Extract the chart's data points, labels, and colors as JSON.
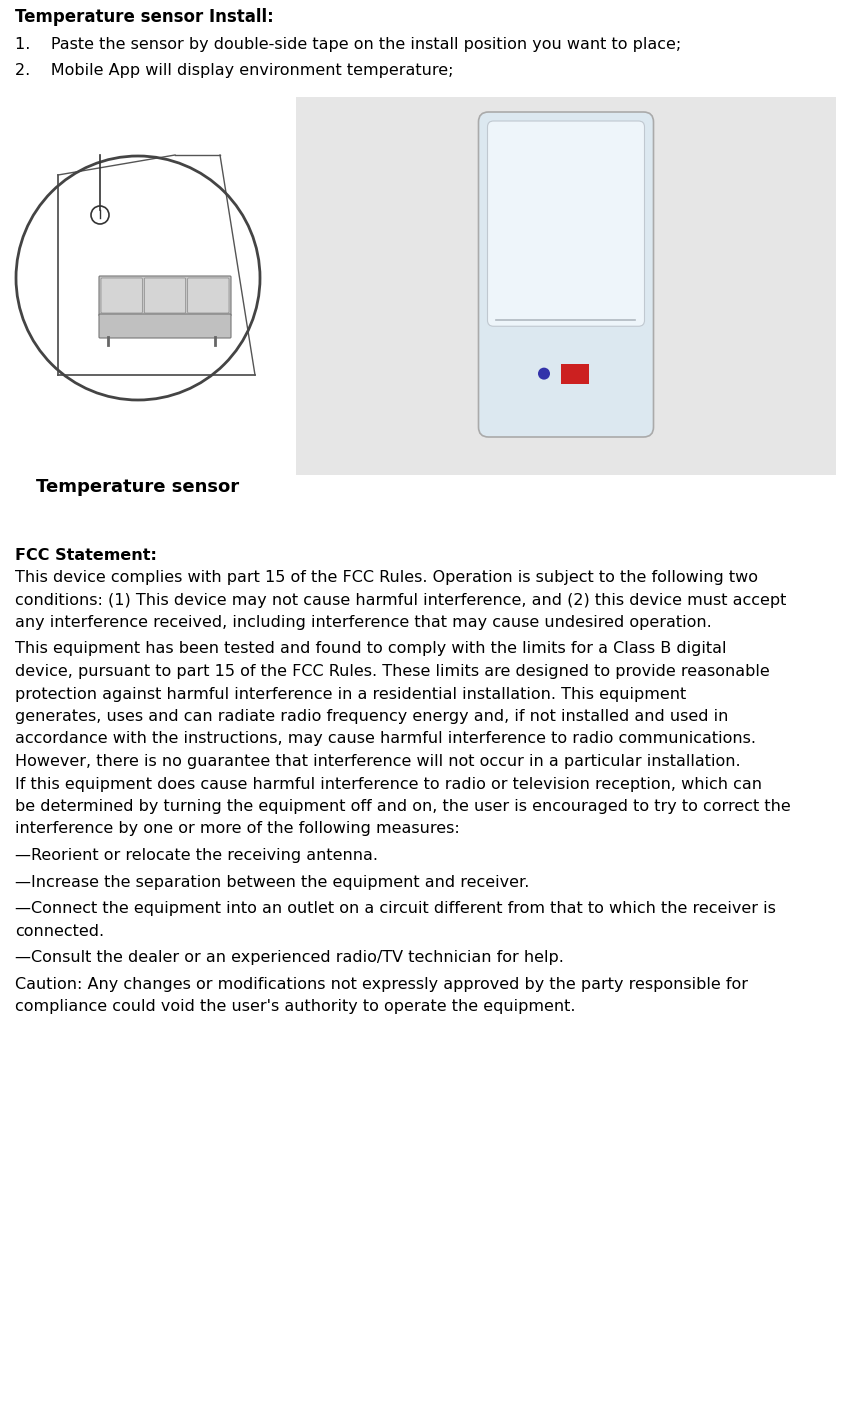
{
  "title": "Temperature sensor Install:",
  "install_steps": [
    "1.    Paste the sensor by double-side tape on the install position you want to place;",
    "2.    Mobile App will display environment temperature;"
  ],
  "image_label": "Temperature sensor",
  "fcc_title": "FCC Statement:",
  "fcc_paragraphs": [
    "This device complies with part 15 of the FCC Rules. Operation is subject to the following two conditions: (1) This device may not cause harmful interference, and (2) this device must accept any interference received, including interference that may cause undesired operation.",
    "This equipment has been tested and found to comply with the limits for a Class B digital device, pursuant to part 15 of the FCC Rules. These limits are designed to provide reasonable protection against harmful interference in a residential installation. This equipment generates, uses and can radiate radio frequency energy and, if not installed and used in accordance with the instructions, may cause harmful interference to radio communications. However, there is no guarantee that interference will not occur in a particular installation. If this equipment does cause harmful interference to radio or television reception, which can be determined by turning the equipment off and on, the user is encouraged to try to correct the interference by one or more of the following measures:",
    "—Reorient or relocate the receiving antenna.",
    "—Increase the separation between the equipment and receiver.",
    "—Connect the equipment into an outlet on a circuit different from that to which the receiver is connected.",
    "—Consult the dealer or an experienced radio/TV technician for help.",
    "Caution: Any changes or modifications not expressly approved by the party responsible for compliance could void the user's authority to operate the equipment."
  ],
  "bg_color": "#ffffff",
  "text_color": "#000000",
  "font_size_title": 12,
  "font_size_body": 11.5,
  "image_bg_color": "#e6e6e6",
  "circle_color": "#444444",
  "device_body_color": "#dce8f0",
  "device_top_color": "#eef5fa",
  "blue_dot_color": "#3333aa",
  "red_rect_color": "#cc2020"
}
